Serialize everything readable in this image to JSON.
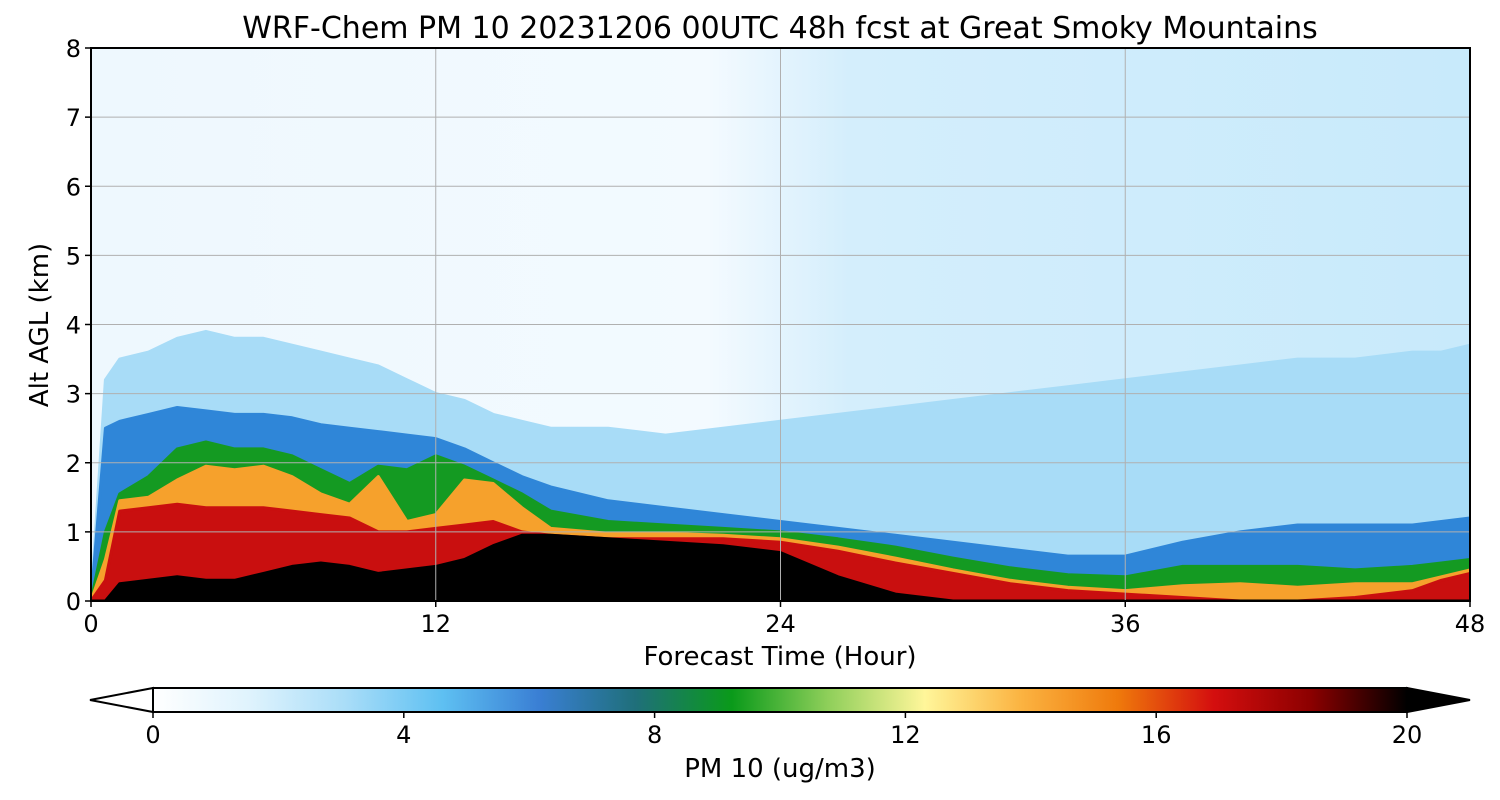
{
  "chart_data": {
    "type": "heatmap",
    "title": "WRF-Chem PM 10  20231206 00UTC 48h fcst at Great Smoky Mountains",
    "xlabel": "Forecast Time (Hour)",
    "ylabel": "Alt AGL (km)",
    "xlim": [
      0,
      48
    ],
    "ylim": [
      0,
      8
    ],
    "xticks": [
      0,
      12,
      24,
      36,
      48
    ],
    "yticks": [
      0,
      1,
      2,
      3,
      4,
      5,
      6,
      7,
      8
    ],
    "grid": true,
    "colorbar": {
      "label": "PM 10  (ug/m3)",
      "min": 0,
      "max": 20,
      "ticks": [
        0,
        4,
        8,
        12,
        16,
        20
      ],
      "extend": "both",
      "orientation": "horizontal",
      "colors": [
        "#ffffff",
        "#dff3fd",
        "#a9ddf8",
        "#5ec0f2",
        "#3a7fd4",
        "#1f6f7a",
        "#0a9a1a",
        "#8fcf5a",
        "#fff69a",
        "#fbb341",
        "#ef7a0c",
        "#d40e0e",
        "#8c0000",
        "#000000"
      ]
    },
    "series": [
      {
        "x": [
          0,
          0.5,
          1,
          2,
          3,
          4,
          5,
          6,
          7,
          8,
          9,
          10,
          11,
          12,
          13,
          14,
          15,
          16,
          18,
          20,
          22,
          24,
          26,
          28,
          30,
          32,
          34,
          36,
          38,
          40,
          42,
          44,
          46,
          47,
          48
        ],
        "black_top_km": [
          0,
          0,
          0.25,
          0.3,
          0.35,
          0.3,
          0.3,
          0.4,
          0.5,
          0.55,
          0.5,
          0.4,
          0.45,
          0.5,
          0.6,
          0.8,
          0.95,
          0.95,
          0.9,
          0.85,
          0.8,
          0.7,
          0.35,
          0.1,
          0,
          0,
          0,
          0,
          0,
          0,
          0,
          0,
          0,
          0,
          0
        ],
        "red_top_km": [
          0,
          0.3,
          1.3,
          1.35,
          1.4,
          1.35,
          1.35,
          1.35,
          1.3,
          1.25,
          1.2,
          1.0,
          1.0,
          1.05,
          1.1,
          1.15,
          1.0,
          0.95,
          0.9,
          0.9,
          0.9,
          0.85,
          0.72,
          0.55,
          0.4,
          0.25,
          0.15,
          0.1,
          0.05,
          0.0,
          0.0,
          0.05,
          0.15,
          0.3,
          0.4
        ],
        "orange_top_km": [
          0,
          0.6,
          1.45,
          1.5,
          1.75,
          1.95,
          1.9,
          1.95,
          1.8,
          1.55,
          1.4,
          1.8,
          1.15,
          1.25,
          1.75,
          1.7,
          1.35,
          1.05,
          0.98,
          0.98,
          0.95,
          0.9,
          0.78,
          0.62,
          0.45,
          0.3,
          0.2,
          0.15,
          0.22,
          0.25,
          0.2,
          0.25,
          0.25,
          0.35,
          0.45
        ],
        "green_top_km": [
          0,
          1.0,
          1.55,
          1.8,
          2.2,
          2.3,
          2.2,
          2.2,
          2.1,
          1.9,
          1.7,
          1.95,
          1.9,
          2.1,
          1.95,
          1.75,
          1.55,
          1.3,
          1.15,
          1.1,
          1.05,
          1.0,
          0.9,
          0.78,
          0.62,
          0.48,
          0.38,
          0.35,
          0.5,
          0.5,
          0.5,
          0.45,
          0.5,
          0.55,
          0.6
        ],
        "blue_top_km": [
          0,
          2.5,
          2.6,
          2.7,
          2.8,
          2.75,
          2.7,
          2.7,
          2.65,
          2.55,
          2.5,
          2.45,
          2.4,
          2.35,
          2.2,
          2.0,
          1.8,
          1.65,
          1.45,
          1.35,
          1.25,
          1.15,
          1.05,
          0.95,
          0.85,
          0.75,
          0.65,
          0.65,
          0.85,
          1.0,
          1.1,
          1.1,
          1.1,
          1.15,
          1.2
        ],
        "lightblue_top_km": [
          0,
          3.2,
          3.5,
          3.6,
          3.8,
          3.9,
          3.8,
          3.8,
          3.7,
          3.6,
          3.5,
          3.4,
          3.2,
          3.0,
          2.9,
          2.7,
          2.6,
          2.5,
          2.5,
          2.4,
          2.5,
          2.6,
          2.7,
          2.8,
          2.9,
          3.0,
          3.1,
          3.2,
          3.3,
          3.4,
          3.5,
          3.5,
          3.6,
          3.6,
          3.7
        ]
      }
    ]
  }
}
